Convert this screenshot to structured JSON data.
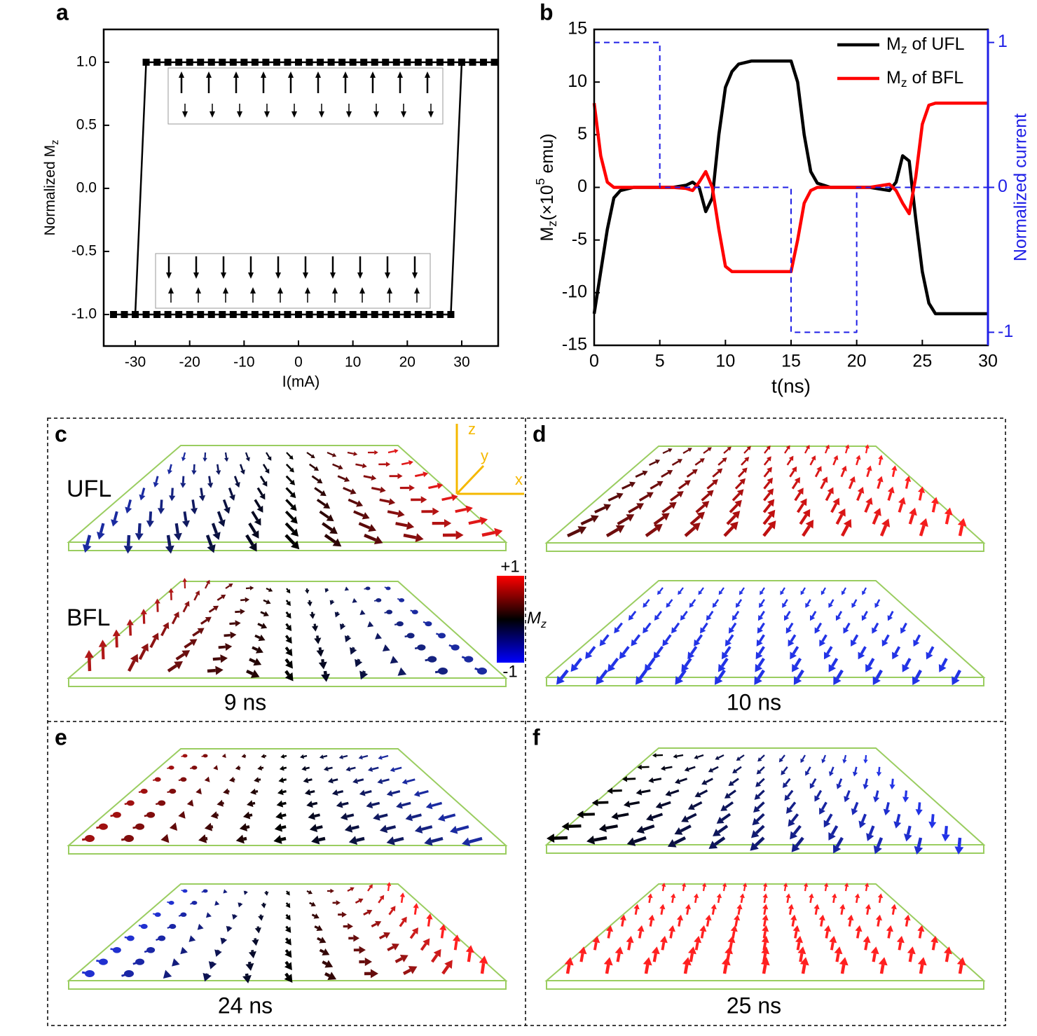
{
  "chart_data": [
    {
      "type": "line",
      "panel_label": "a",
      "marker": "square",
      "xlabel": "I(mA)",
      "ylabel": [
        "Normalized M",
        "z"
      ],
      "xlim": [
        -35.8,
        36.7
      ],
      "ylim": [
        -1.25,
        1.26
      ],
      "xticks": [
        -30,
        -20,
        -10,
        0,
        10,
        20,
        30
      ],
      "yticks": [
        {
          "value": -1,
          "label": "-1.0"
        },
        {
          "value": -0.5,
          "label": "-0.5"
        },
        {
          "value": 0,
          "label": "0.0"
        },
        {
          "value": 0.5,
          "label": "0.5"
        },
        {
          "value": 1,
          "label": "1.0"
        }
      ],
      "series": [
        {
          "color": "#000000",
          "x": [
            -34,
            -32,
            -30,
            -28,
            -26,
            -24,
            -22,
            -20,
            -18,
            -16,
            -14,
            -12,
            -10,
            -8,
            -6,
            -4,
            -2,
            0,
            2,
            4,
            6,
            8,
            10,
            12,
            14,
            16,
            18,
            20,
            22,
            24,
            26,
            28,
            30
          ],
          "values": [
            -1,
            -1,
            -1,
            -1,
            -1,
            -1,
            -1,
            -1,
            -1,
            -1,
            -1,
            -1,
            -1,
            -1,
            -1,
            -1,
            -1,
            -1,
            -1,
            -1,
            -1,
            -1,
            -1,
            -1,
            -1,
            -1,
            -1,
            -1,
            -1,
            -1,
            -1,
            -1,
            1
          ]
        },
        {
          "color": "#000000",
          "x": [
            36,
            34,
            32,
            30,
            28,
            26,
            24,
            22,
            20,
            18,
            16,
            14,
            12,
            10,
            8,
            6,
            4,
            2,
            0,
            -2,
            -4,
            -6,
            -8,
            -10,
            -12,
            -14,
            -16,
            -18,
            -20,
            -22,
            -24,
            -26,
            -28,
            -30
          ],
          "values": [
            1,
            1,
            1,
            1,
            1,
            1,
            1,
            1,
            1,
            1,
            1,
            1,
            1,
            1,
            1,
            1,
            1,
            1,
            1,
            1,
            1,
            1,
            1,
            1,
            1,
            1,
            1,
            1,
            1,
            1,
            1,
            1,
            1,
            -1
          ]
        }
      ]
    },
    {
      "type": "line",
      "panel_label": "b",
      "legend": "upper right",
      "xlabel": "t(ns)",
      "ylabel": [
        "M",
        "z",
        "(×10",
        "5",
        " emu)"
      ],
      "y2label": "Normalized current",
      "y2color": "#1f1fe6",
      "xlim": [
        0,
        30
      ],
      "ylim": [
        -15,
        15
      ],
      "y2lim": [
        -1.09,
        1.09
      ],
      "xticks": [
        0,
        5,
        10,
        15,
        20,
        25,
        30
      ],
      "yticks": [
        -15,
        -10,
        -5,
        0,
        5,
        10,
        15
      ],
      "y2ticks": [
        -1,
        0,
        1
      ],
      "x": [
        0,
        0.5,
        1,
        1.5,
        2,
        3,
        4,
        5,
        6,
        7,
        7.5,
        8,
        8.5,
        9,
        9.5,
        10,
        10.5,
        11,
        12,
        13,
        14,
        15,
        15.5,
        16,
        16.5,
        17,
        18,
        19,
        20,
        21,
        22,
        22.5,
        23,
        23.5,
        24,
        24.5,
        25,
        25.5,
        26,
        27,
        28,
        29,
        30
      ],
      "series": [
        {
          "name": "Mz of UFL",
          "color": "#000000",
          "values": [
            -12,
            -8,
            -4,
            -1,
            -0.3,
            0,
            0,
            0,
            0,
            0.2,
            0.5,
            0,
            -2.3,
            -1,
            5,
            9.5,
            11,
            11.7,
            12,
            12,
            12,
            12,
            10,
            5,
            1.5,
            0.4,
            0,
            0,
            0,
            0,
            -0.2,
            -0.3,
            0.5,
            3,
            2.5,
            -3,
            -8,
            -11,
            -12,
            -12,
            -12,
            -12,
            -12
          ]
        },
        {
          "name": "Mz of BFL",
          "color": "#ff0000",
          "values": [
            8,
            3,
            0.5,
            0,
            0,
            0,
            0,
            0,
            0,
            -0.1,
            -0.3,
            0.5,
            1.5,
            0,
            -4,
            -7.5,
            -8,
            -8,
            -8,
            -8,
            -8,
            -8,
            -5,
            -1.5,
            -0.3,
            0,
            0,
            0,
            0,
            0,
            0.2,
            0.3,
            -0.3,
            -1.5,
            -2.5,
            1,
            6,
            7.8,
            8,
            8,
            8,
            8,
            8
          ]
        },
        {
          "color": "#1f1fe6",
          "axis": "y2",
          "line_style": "dashed",
          "x": [
            0,
            5,
            5,
            15,
            15,
            20,
            20,
            30
          ],
          "values": [
            1,
            1,
            0,
            0,
            -1,
            -1,
            0,
            0
          ]
        }
      ]
    }
  ],
  "vector_panels": [
    {
      "label": "c",
      "layers": [
        "UFL",
        "BFL"
      ],
      "time": "9 ns",
      "axes": [
        "z",
        "y",
        "x"
      ],
      "colorbar": {
        "max_label": "+1",
        "min_label": "-1",
        "label": [
          "M",
          "z"
        ]
      }
    },
    {
      "label": "d",
      "time": "10 ns"
    },
    {
      "label": "e",
      "time": "24 ns"
    },
    {
      "label": "f",
      "time": "25 ns"
    }
  ]
}
